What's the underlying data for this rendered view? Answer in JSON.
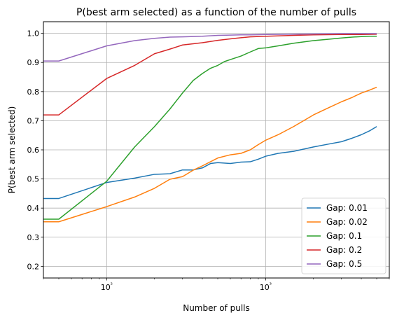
{
  "chart_data": {
    "type": "line",
    "title": "P(best arm selected) as a function of the number of pulls",
    "xlabel": "Number of pulls",
    "ylabel": "P(best arm selected)",
    "xscale": "log",
    "xlim": [
      40,
      6000
    ],
    "ylim": [
      0.16,
      1.04
    ],
    "grid": true,
    "legend_position": "lower-right",
    "x_major_ticks": [
      100,
      1000
    ],
    "x_tick_labels": [
      "10²",
      "10³"
    ],
    "y_ticks": [
      0.2,
      0.3,
      0.4,
      0.5,
      0.6,
      0.7,
      0.8,
      0.9,
      1.0
    ],
    "y_tick_labels": [
      "0.2",
      "0.3",
      "0.4",
      "0.5",
      "0.6",
      "0.7",
      "0.8",
      "0.9",
      "1.0"
    ],
    "series": [
      {
        "name": "Gap: 0.01",
        "color": "#1f77b4",
        "x": [
          40,
          50,
          100,
          150,
          200,
          250,
          300,
          350,
          400,
          450,
          500,
          600,
          700,
          800,
          900,
          1000,
          1200,
          1500,
          2000,
          2500,
          3000,
          3500,
          4000,
          4500,
          5000
        ],
        "y": [
          0.433,
          0.433,
          0.488,
          0.503,
          0.516,
          0.518,
          0.531,
          0.531,
          0.538,
          0.553,
          0.556,
          0.553,
          0.558,
          0.559,
          0.568,
          0.578,
          0.588,
          0.595,
          0.61,
          0.62,
          0.628,
          0.64,
          0.652,
          0.665,
          0.68
        ]
      },
      {
        "name": "Gap: 0.02",
        "color": "#ff7f0e",
        "x": [
          40,
          50,
          100,
          150,
          200,
          250,
          300,
          350,
          400,
          500,
          600,
          700,
          800,
          900,
          1000,
          1200,
          1500,
          2000,
          2500,
          3000,
          3500,
          4000,
          4500,
          5000
        ],
        "y": [
          0.353,
          0.353,
          0.405,
          0.438,
          0.468,
          0.499,
          0.508,
          0.53,
          0.545,
          0.572,
          0.583,
          0.588,
          0.6,
          0.618,
          0.633,
          0.652,
          0.68,
          0.72,
          0.745,
          0.765,
          0.78,
          0.795,
          0.805,
          0.815
        ]
      },
      {
        "name": "Gap: 0.1",
        "color": "#2ca02c",
        "x": [
          40,
          50,
          100,
          150,
          200,
          250,
          300,
          350,
          400,
          450,
          500,
          550,
          600,
          700,
          800,
          900,
          1000,
          1200,
          1500,
          2000,
          2500,
          3000,
          3500,
          4000,
          4500,
          5000
        ],
        "y": [
          0.362,
          0.362,
          0.492,
          0.61,
          0.68,
          0.74,
          0.795,
          0.838,
          0.862,
          0.88,
          0.89,
          0.903,
          0.91,
          0.922,
          0.936,
          0.948,
          0.95,
          0.957,
          0.966,
          0.975,
          0.98,
          0.984,
          0.987,
          0.989,
          0.99,
          0.99
        ]
      },
      {
        "name": "Gap: 0.2",
        "color": "#d62728",
        "x": [
          40,
          50,
          100,
          150,
          200,
          250,
          300,
          400,
          500,
          600,
          700,
          800,
          1000,
          1500,
          2000,
          3000,
          4000,
          5000
        ],
        "y": [
          0.72,
          0.72,
          0.845,
          0.89,
          0.93,
          0.946,
          0.96,
          0.968,
          0.976,
          0.981,
          0.985,
          0.988,
          0.99,
          0.993,
          0.995,
          0.996,
          0.996,
          0.997
        ]
      },
      {
        "name": "Gap: 0.5",
        "color": "#9467bd",
        "x": [
          40,
          50,
          100,
          150,
          200,
          250,
          300,
          400,
          500,
          600,
          700,
          800,
          1000,
          2000,
          3000,
          5000
        ],
        "y": [
          0.905,
          0.905,
          0.957,
          0.975,
          0.983,
          0.987,
          0.988,
          0.99,
          0.993,
          0.994,
          0.995,
          0.995,
          0.996,
          0.998,
          0.999,
          0.999
        ]
      }
    ]
  }
}
